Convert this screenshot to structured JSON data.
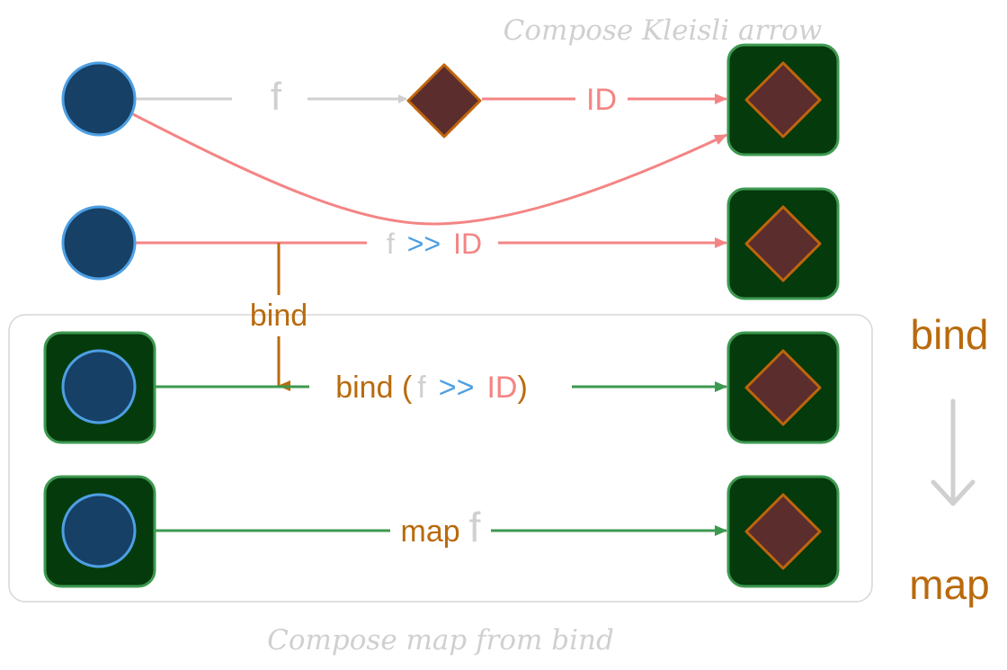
{
  "titles": {
    "top": "Compose Kleisli arrow",
    "bottom": "Compose map from bind"
  },
  "row1": {
    "f": "f",
    "id": "ID"
  },
  "row2": {
    "f": "f",
    "op": ">>",
    "id": "ID"
  },
  "connector": {
    "bind": "bind"
  },
  "row3": {
    "bind": "bind (",
    "f": "f",
    "op": ">>",
    "id": "ID",
    "close": ")"
  },
  "row4": {
    "map": "map",
    "f": "f"
  },
  "side": {
    "bind": "bind",
    "map": "map"
  },
  "colors": {
    "circle_fill": "#164066",
    "circle_stroke": "#4d9fe3",
    "diamond_fill": "#5c2d2d",
    "diamond_stroke": "#c0650c",
    "box_fill": "#053a0c",
    "box_stroke": "#3d9950",
    "pink": "#f48484",
    "gray": "#d0d0d0",
    "green": "#3d9950",
    "orange": "#b96a0c",
    "blue": "#4d9fe3"
  }
}
